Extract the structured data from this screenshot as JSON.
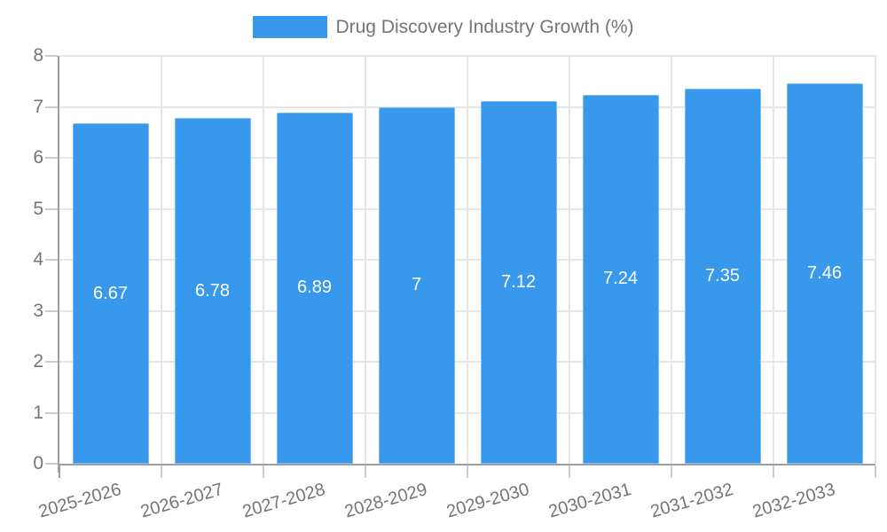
{
  "legend": {
    "label": "Drug Discovery Industry Growth (%)",
    "swatch_color": "#3898ec"
  },
  "chart_data": {
    "type": "bar",
    "title": "Drug Discovery Industry Growth (%)",
    "categories": [
      "2025-2026",
      "2026-2027",
      "2027-2028",
      "2028-2029",
      "2029-2030",
      "2030-2031",
      "2031-2032",
      "2032-2033"
    ],
    "values": [
      6.67,
      6.78,
      6.89,
      7,
      7.12,
      7.24,
      7.35,
      7.46
    ],
    "value_labels": [
      "6.67",
      "6.78",
      "6.89",
      "7",
      "7.12",
      "7.24",
      "7.35",
      "7.46"
    ],
    "xlabel": "",
    "ylabel": "",
    "ylim": [
      0,
      8
    ],
    "yticks": [
      0,
      1,
      2,
      3,
      4,
      5,
      6,
      7,
      8
    ],
    "grid": true,
    "legend_position": "top",
    "bar_color": "#3898ec",
    "bar_value_color": "#ffffff",
    "axis_color": "#9e9e9e",
    "grid_color": "#e6e6e6",
    "tick_color": "#cccccc",
    "text_color": "#757575"
  }
}
